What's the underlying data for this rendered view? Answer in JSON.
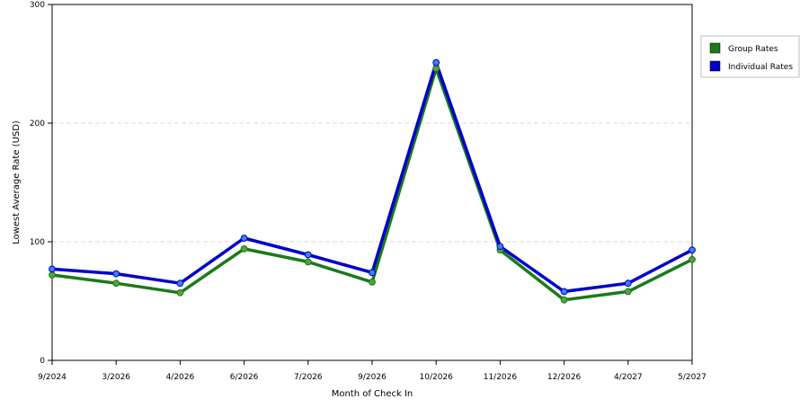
{
  "chart_data": {
    "type": "line",
    "categories": [
      "9/2024",
      "3/2026",
      "4/2026",
      "6/2026",
      "7/2026",
      "9/2026",
      "10/2026",
      "11/2026",
      "12/2026",
      "4/2027",
      "5/2027"
    ],
    "series": [
      {
        "name": "Group Rates",
        "color": "#1a7a1a",
        "marker_color": "#5aa03a",
        "values": [
          72,
          65,
          57,
          94,
          83,
          66,
          246,
          93,
          51,
          58,
          85
        ]
      },
      {
        "name": "Individual Rates",
        "color": "#0000cc",
        "marker_color": "#3d7ff0",
        "values": [
          77,
          73,
          65,
          103,
          89,
          74,
          251,
          96,
          58,
          65,
          93
        ]
      }
    ],
    "xlabel": "Month of Check In",
    "ylabel": "Lowest Average Rate (USD)",
    "ylim": [
      0,
      300
    ],
    "yticks": [
      0,
      100,
      200,
      300
    ],
    "grid": true,
    "legend_position": "right"
  }
}
